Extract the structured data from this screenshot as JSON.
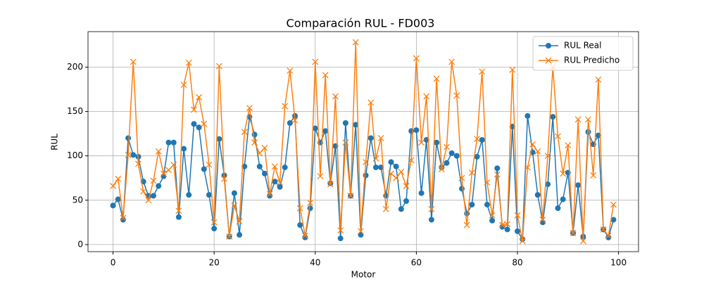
{
  "chart_data": {
    "type": "line",
    "title": "Comparación RUL - FD003",
    "x_label": "Motor",
    "y_label": "RUL",
    "x": [
      0,
      1,
      2,
      3,
      4,
      5,
      6,
      7,
      8,
      9,
      10,
      11,
      12,
      13,
      14,
      15,
      16,
      17,
      18,
      19,
      20,
      21,
      22,
      23,
      24,
      25,
      26,
      27,
      28,
      29,
      30,
      31,
      32,
      33,
      34,
      35,
      36,
      37,
      38,
      39,
      40,
      41,
      42,
      43,
      44,
      45,
      46,
      47,
      48,
      49,
      50,
      51,
      52,
      53,
      54,
      55,
      56,
      57,
      58,
      59,
      60,
      61,
      62,
      63,
      64,
      65,
      66,
      67,
      68,
      69,
      70,
      71,
      72,
      73,
      74,
      75,
      76,
      77,
      78,
      79,
      80,
      81,
      82,
      83,
      84,
      85,
      86,
      87,
      88,
      89,
      90,
      91,
      92,
      93,
      94,
      95,
      96,
      97,
      98,
      99
    ],
    "series": [
      {
        "name": "RUL Real",
        "color": "#1f77b4",
        "marker": "circle",
        "values": [
          44,
          51,
          28,
          120,
          101,
          99,
          71,
          55,
          55,
          66,
          77,
          115,
          115,
          31,
          108,
          56,
          136,
          132,
          85,
          56,
          18,
          119,
          78,
          9,
          58,
          11,
          88,
          144,
          124,
          88,
          80,
          55,
          71,
          65,
          87,
          137,
          145,
          22,
          8,
          41,
          131,
          115,
          128,
          69,
          111,
          7,
          137,
          55,
          135,
          11,
          78,
          120,
          87,
          87,
          55,
          93,
          88,
          40,
          49,
          128,
          129,
          58,
          118,
          28,
          115,
          87,
          92,
          103,
          100,
          63,
          35,
          45,
          99,
          118,
          45,
          27,
          86,
          20,
          17,
          133,
          15,
          6,
          145,
          104,
          56,
          25,
          68,
          144,
          41,
          51,
          81,
          13,
          67,
          9,
          127,
          113,
          123,
          17,
          8,
          28
        ]
      },
      {
        "name": "RUL Predicho",
        "color": "#ff7f0e",
        "marker": "x",
        "values": [
          66,
          74,
          30,
          101,
          206,
          91,
          60,
          50,
          72,
          105,
          80,
          84,
          90,
          38,
          180,
          205,
          152,
          166,
          136,
          90,
          25,
          201,
          74,
          9,
          44,
          26,
          127,
          154,
          115,
          103,
          109,
          57,
          88,
          70,
          156,
          196,
          140,
          41,
          10,
          47,
          206,
          77,
          191,
          68,
          167,
          16,
          115,
          55,
          228,
          15,
          93,
          160,
          97,
          120,
          40,
          80,
          75,
          82,
          66,
          95,
          210,
          115,
          167,
          40,
          187,
          85,
          110,
          206,
          168,
          75,
          22,
          81,
          119,
          195,
          70,
          33,
          79,
          22,
          23,
          197,
          33,
          4,
          87,
          113,
          105,
          28,
          100,
          200,
          122,
          80,
          112,
          13,
          141,
          4,
          141,
          78,
          186,
          17,
          10,
          45
        ]
      }
    ],
    "xlim": [
      -4.95,
      103.95
    ],
    "ylim": [
      -8,
      240
    ],
    "xticks": [
      0,
      20,
      40,
      60,
      80,
      100
    ],
    "yticks": [
      0,
      50,
      100,
      150,
      200
    ],
    "grid": true,
    "legend": "upper right"
  }
}
